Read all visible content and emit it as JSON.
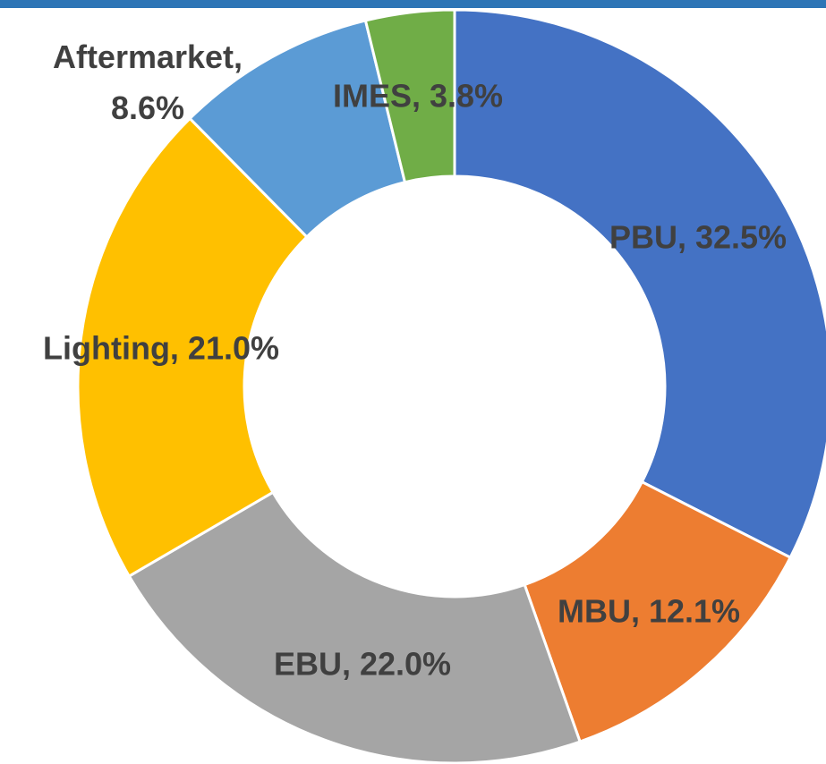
{
  "chart_data": {
    "type": "donut",
    "values": [
      32.5,
      12.1,
      22.0,
      21.0,
      8.6,
      3.8
    ],
    "value_labels": [
      "PBU, 32.5%",
      "MBU, 12.1%",
      "EBU, 22.0%",
      "Lighting, 21.0%",
      "Aftermarket, 8.6%",
      "IMES, 3.8%"
    ],
    "colors": [
      "#4472c4",
      "#ed7d31",
      "#a5a5a5",
      "#ffc000",
      "#5b9bd5",
      "#70ad47"
    ]
  }
}
